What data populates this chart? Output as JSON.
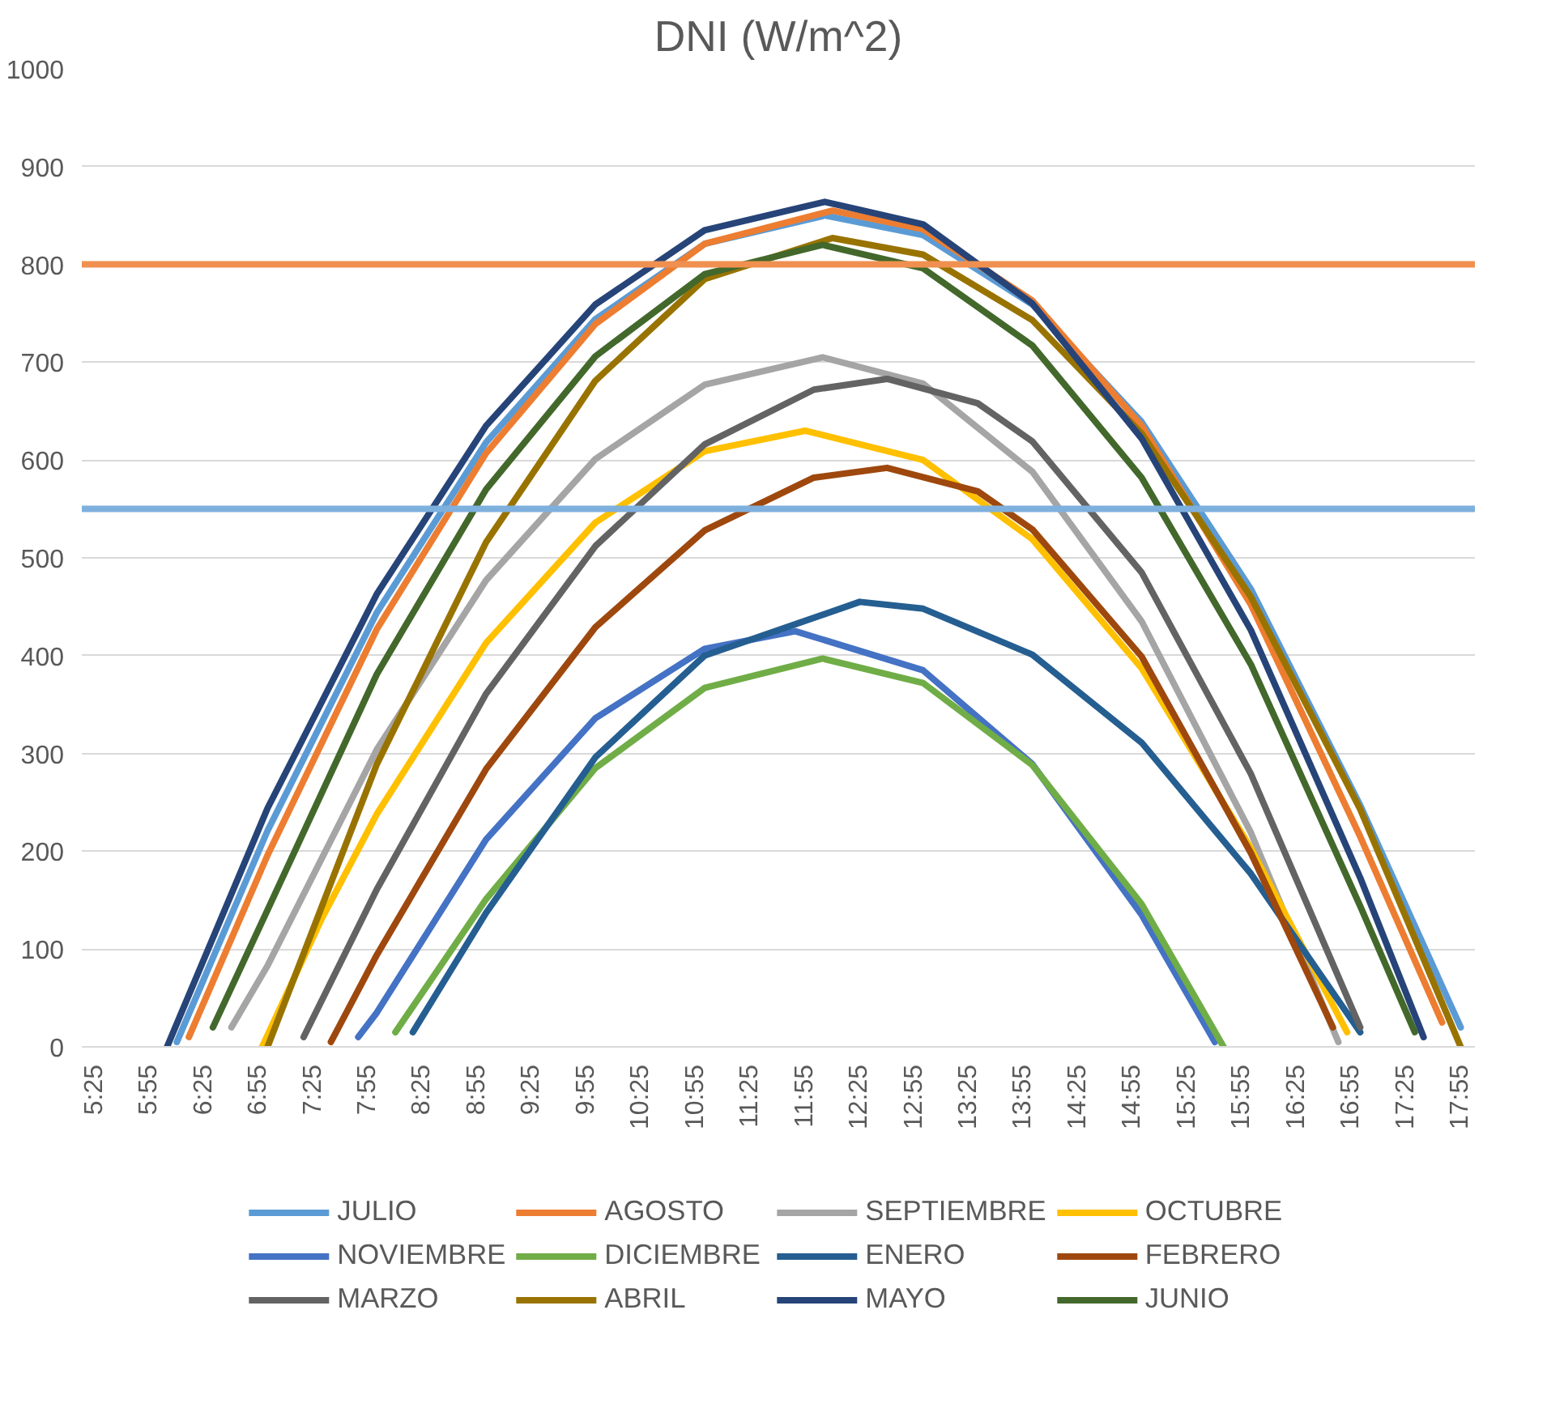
{
  "chart_data": {
    "type": "line",
    "title": "DNI (W/m^2)",
    "xlim": [
      5.3,
      18.05
    ],
    "ylim": [
      0,
      1000
    ],
    "yticks": [
      0,
      100,
      200,
      300,
      400,
      500,
      600,
      700,
      800,
      900,
      1000
    ],
    "xticks": [
      {
        "value": 5.4167,
        "label": "5:25"
      },
      {
        "value": 5.9167,
        "label": "5:55"
      },
      {
        "value": 6.4167,
        "label": "6:25"
      },
      {
        "value": 6.9167,
        "label": "6:55"
      },
      {
        "value": 7.4167,
        "label": "7:25"
      },
      {
        "value": 7.9167,
        "label": "7:55"
      },
      {
        "value": 8.4167,
        "label": "8:25"
      },
      {
        "value": 8.9167,
        "label": "8:55"
      },
      {
        "value": 9.4167,
        "label": "9:25"
      },
      {
        "value": 9.9167,
        "label": "9:55"
      },
      {
        "value": 10.4167,
        "label": "10:25"
      },
      {
        "value": 10.9167,
        "label": "10:55"
      },
      {
        "value": 11.4167,
        "label": "11:25"
      },
      {
        "value": 11.9167,
        "label": "11:55"
      },
      {
        "value": 12.4167,
        "label": "12:25"
      },
      {
        "value": 12.9167,
        "label": "12:55"
      },
      {
        "value": 13.4167,
        "label": "13:25"
      },
      {
        "value": 13.9167,
        "label": "13:55"
      },
      {
        "value": 14.4167,
        "label": "14:25"
      },
      {
        "value": 14.9167,
        "label": "14:55"
      },
      {
        "value": 15.4167,
        "label": "15:25"
      },
      {
        "value": 15.9167,
        "label": "15:55"
      },
      {
        "value": 16.4167,
        "label": "16:25"
      },
      {
        "value": 16.9167,
        "label": "16:55"
      },
      {
        "value": 17.4167,
        "label": "17:25"
      },
      {
        "value": 17.9167,
        "label": "17:55"
      }
    ],
    "grid": "y",
    "legend": "bottom",
    "marker": "none",
    "line_style": "solid",
    "ref_lines": [
      {
        "axis": "y",
        "value": 800,
        "color": "#f09050"
      },
      {
        "axis": "y",
        "value": 550,
        "color": "#7eb0de"
      }
    ],
    "series": [
      {
        "name": "JULIO",
        "color": "#5b9bd5",
        "x": [
          6.17,
          7,
          8,
          9,
          10,
          11,
          12.1,
          13,
          14,
          15,
          16,
          17,
          17.92
        ],
        "values": [
          5,
          221,
          444,
          618,
          744,
          821,
          850,
          830,
          759,
          639,
          468,
          247,
          20
        ]
      },
      {
        "name": "AGOSTO",
        "color": "#ed7d31",
        "x": [
          6.28,
          7,
          8,
          9,
          10,
          11,
          12.17,
          13,
          14,
          15,
          16,
          17,
          17.75
        ],
        "values": [
          10,
          196,
          427,
          607,
          739,
          821,
          855,
          836,
          763,
          635,
          452,
          215,
          25
        ]
      },
      {
        "name": "SEPTIEMBRE",
        "color": "#a5a5a5",
        "x": [
          6.67,
          7,
          8,
          9,
          10,
          11,
          12.08,
          13,
          14,
          15,
          16,
          16.8
        ],
        "values": [
          20,
          83,
          304,
          477,
          601,
          677,
          705,
          678,
          588,
          435,
          219,
          5
        ]
      },
      {
        "name": "OCTUBRE",
        "color": "#ffc000",
        "x": [
          6.95,
          7.5,
          8,
          9,
          10,
          11,
          11.92,
          13,
          14,
          15,
          16,
          16.88
        ],
        "values": [
          0,
          132,
          238,
          413,
          536,
          609,
          630,
          600,
          519,
          387,
          203,
          15
        ]
      },
      {
        "name": "NOVIEMBRE",
        "color": "#4472c4",
        "x": [
          7.83,
          8,
          9,
          10,
          11,
          11.83,
          13,
          14,
          15,
          15.67
        ],
        "values": [
          10,
          35,
          212,
          336,
          407,
          425,
          385,
          289,
          135,
          5
        ]
      },
      {
        "name": "DICIEMBRE",
        "color": "#70ad47",
        "x": [
          8.17,
          9,
          10,
          11,
          12.08,
          13,
          14,
          15,
          15.75
        ],
        "values": [
          15,
          151,
          285,
          367,
          397,
          372,
          288,
          146,
          0
        ]
      },
      {
        "name": "ENERO",
        "color": "#255e91",
        "x": [
          8.33,
          9,
          10,
          11,
          12.42,
          13,
          14,
          15,
          16,
          17
        ],
        "values": [
          15,
          137,
          296,
          400,
          455,
          448,
          401,
          311,
          177,
          15
        ]
      },
      {
        "name": "FEBRERO",
        "color": "#9e480e",
        "x": [
          7.58,
          8,
          9,
          10,
          11,
          12,
          12.67,
          13.5,
          14,
          15,
          16,
          16.75
        ],
        "values": [
          5,
          94,
          284,
          429,
          528,
          582,
          592,
          568,
          529,
          399,
          198,
          20
        ]
      },
      {
        "name": "MARZO",
        "color": "#636363",
        "x": [
          7.33,
          8,
          9,
          10,
          11,
          12,
          12.67,
          13.5,
          14,
          15,
          16,
          17
        ],
        "values": [
          10,
          161,
          361,
          512,
          616,
          672,
          683,
          658,
          619,
          485,
          279,
          20
        ]
      },
      {
        "name": "ABRIL",
        "color": "#997300",
        "x": [
          7.0,
          8,
          9,
          10,
          11,
          12.17,
          13,
          14,
          15,
          16,
          17,
          17.92
        ],
        "values": [
          0,
          289,
          516,
          681,
          785,
          827,
          810,
          743,
          627,
          460,
          243,
          0
        ]
      },
      {
        "name": "MAYO",
        "color": "#264478",
        "x": [
          6.08,
          7,
          8,
          9,
          10,
          11,
          12.1,
          13,
          14,
          15,
          16,
          17,
          17.58
        ],
        "values": [
          0,
          244,
          463,
          635,
          759,
          835,
          864,
          841,
          760,
          622,
          426,
          173,
          10
        ]
      },
      {
        "name": "JUNIO",
        "color": "#43682b",
        "x": [
          6.5,
          7,
          8,
          9,
          10,
          11,
          12.08,
          13,
          14,
          15,
          16,
          17,
          17.5
        ],
        "values": [
          20,
          140,
          381,
          570,
          706,
          790,
          820,
          796,
          717,
          582,
          391,
          144,
          15
        ]
      }
    ]
  }
}
